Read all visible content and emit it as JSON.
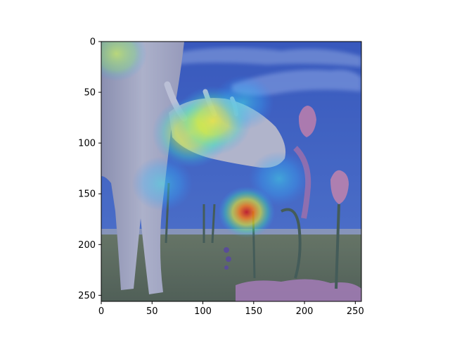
{
  "chart_data": {
    "type": "heatmap",
    "title": "",
    "xlabel": "",
    "ylabel": "",
    "xlim": [
      0,
      256
    ],
    "ylim": [
      256,
      0
    ],
    "y_inverted": true,
    "grid": false,
    "legend": "none",
    "x_ticks": [
      0,
      50,
      100,
      150,
      200,
      250
    ],
    "y_ticks": [
      0,
      50,
      100,
      150,
      200,
      250
    ],
    "colormap": "jet",
    "background_image": "surreal painting of a pale cow-like creature sniffing a tulip, with stylized flowers in a field under a blue cloudy sky",
    "hotspots": [
      {
        "x": 143,
        "y": 168,
        "intensity": 1.0
      },
      {
        "x": 88,
        "y": 90,
        "intensity": 0.72
      },
      {
        "x": 110,
        "y": 78,
        "intensity": 0.62
      },
      {
        "x": 15,
        "y": 12,
        "intensity": 0.55
      },
      {
        "x": 140,
        "y": 60,
        "intensity": 0.38
      },
      {
        "x": 175,
        "y": 135,
        "intensity": 0.35
      },
      {
        "x": 60,
        "y": 140,
        "intensity": 0.32
      }
    ]
  },
  "colors": {
    "sky": "#4a64b8",
    "cloud": "#9aaedc",
    "ground": "#6d7436",
    "horizon": "#9ba0a8",
    "cow": "#c9c2bd",
    "cow_shadow": "#8d8898",
    "flower": "#d68aa6",
    "stem": "#4f6037"
  }
}
